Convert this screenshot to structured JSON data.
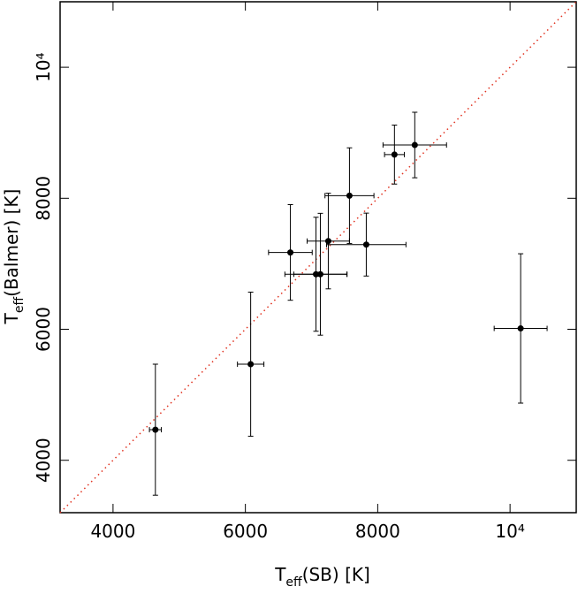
{
  "chart_data": {
    "type": "scatter",
    "x_label": {
      "main": "T",
      "sub": "eff",
      "rest": "(SB)  [K]"
    },
    "y_label": {
      "main": "T",
      "sub": "eff",
      "rest": "(Balmer)  [K]"
    },
    "xlim": [
      3200,
      11000
    ],
    "ylim": [
      3200,
      11000
    ],
    "xticks": [
      4000,
      6000,
      8000,
      {
        "value": 10000,
        "label": "10⁴"
      }
    ],
    "yticks": [
      4000,
      6000,
      8000,
      {
        "value": 10000,
        "label": "10⁴"
      }
    ],
    "identity_line": {
      "color": "#e0301e"
    },
    "series": [
      {
        "color": "#000000",
        "x": [
          4640,
          6080,
          6680,
          7067,
          7133,
          7253,
          7573,
          7827,
          8253,
          8560,
          10160
        ],
        "values": [
          4467,
          5467,
          7173,
          6840,
          6840,
          7347,
          8040,
          7293,
          8667,
          8813,
          6013
        ],
        "xerr": [
          90,
          200,
          330,
          470,
          400,
          320,
          370,
          600,
          150,
          480,
          400
        ],
        "yerr": [
          1000,
          1100,
          730,
          870,
          930,
          730,
          730,
          480,
          450,
          500,
          1140
        ]
      }
    ]
  }
}
